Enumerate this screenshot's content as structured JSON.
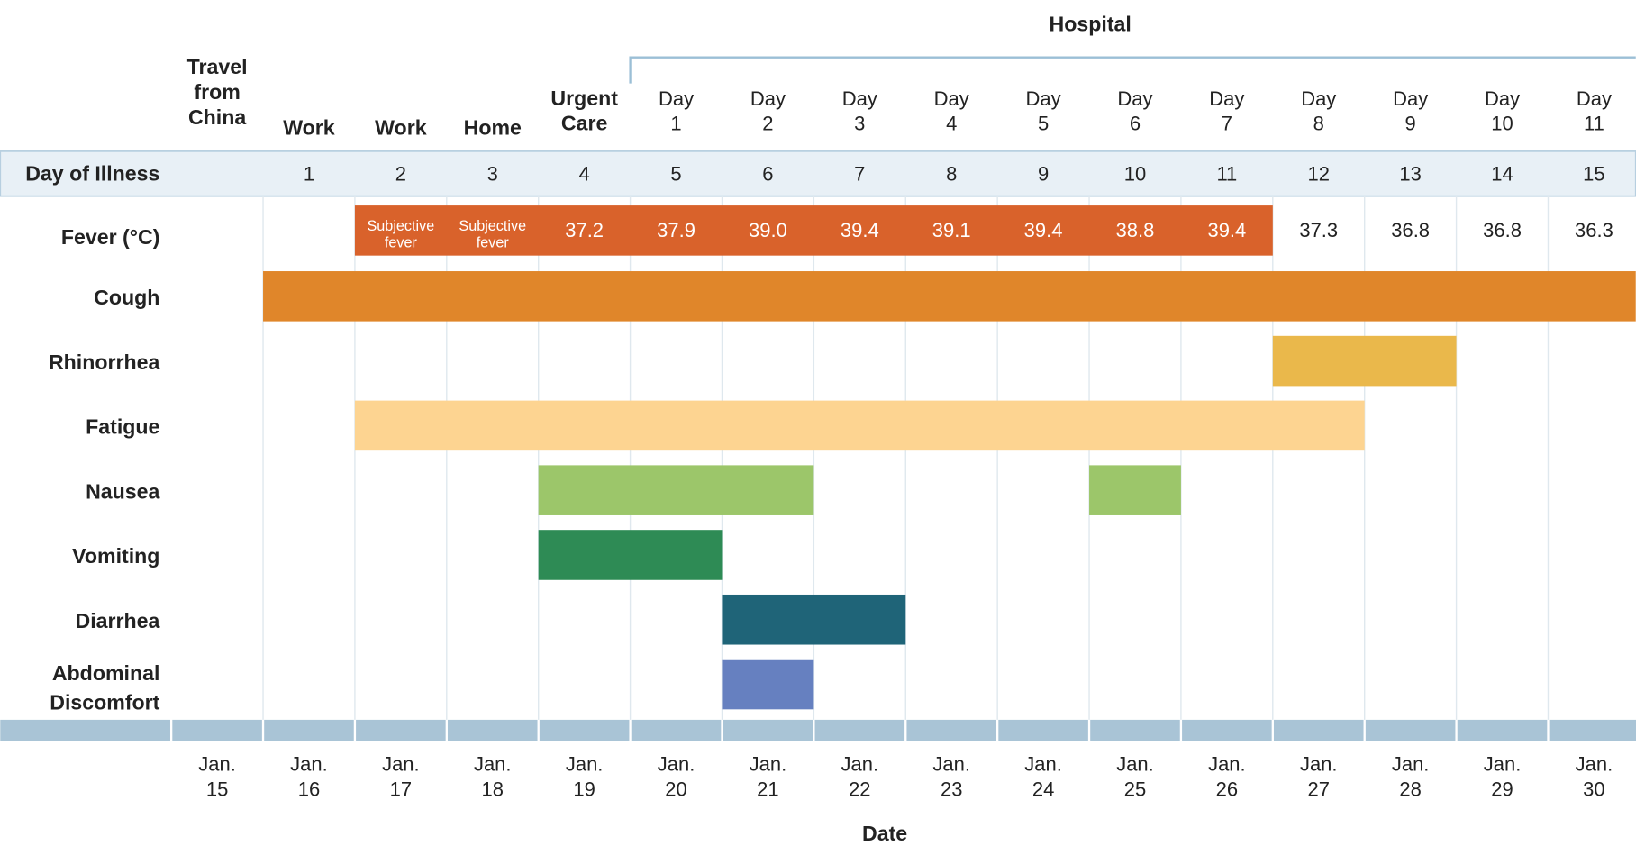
{
  "chart_data": {
    "type": "timeline",
    "group_label": "Hospital",
    "locations": [
      "Travel from China",
      "Work",
      "Work",
      "Home",
      "Urgent Care",
      "Day 1",
      "Day 2",
      "Day 3",
      "Day 4",
      "Day 5",
      "Day 6",
      "Day 7",
      "Day 8",
      "Day 9",
      "Day 10",
      "Day 11"
    ],
    "day_of_illness_label": "Day of Illness",
    "day_of_illness": [
      null,
      "1",
      "2",
      "3",
      "4",
      "5",
      "6",
      "7",
      "8",
      "9",
      "10",
      "11",
      "12",
      "13",
      "14",
      "15"
    ],
    "fever": {
      "name": "Fever (°C)",
      "color": "#d9622b",
      "start": "Jan. 17",
      "end": "Jan. 26",
      "readings": [
        null,
        null,
        "Subjective fever",
        "Subjective fever",
        "37.2",
        "37.9",
        "39.0",
        "39.4",
        "39.1",
        "39.4",
        "38.8",
        "39.4",
        "37.3",
        "36.8",
        "36.8",
        "36.3"
      ]
    },
    "series": [
      {
        "name": "Cough",
        "color": "#e0862a",
        "segments": [
          {
            "start": "Jan. 16",
            "end": "Jan. 30"
          }
        ]
      },
      {
        "name": "Rhinorrhea",
        "color": "#eab84b",
        "segments": [
          {
            "start": "Jan. 27",
            "end": "Jan. 28"
          }
        ]
      },
      {
        "name": "Fatigue",
        "color": "#fdd491",
        "segments": [
          {
            "start": "Jan. 17",
            "end": "Jan. 27"
          }
        ]
      },
      {
        "name": "Nausea",
        "color": "#9cc66a",
        "segments": [
          {
            "start": "Jan. 19",
            "end": "Jan. 21"
          },
          {
            "start": "Jan. 25",
            "end": "Jan. 25"
          }
        ]
      },
      {
        "name": "Vomiting",
        "color": "#2e8b55",
        "segments": [
          {
            "start": "Jan. 19",
            "end": "Jan. 20"
          }
        ]
      },
      {
        "name": "Diarrhea",
        "color": "#1f6478",
        "segments": [
          {
            "start": "Jan. 21",
            "end": "Jan. 22"
          }
        ]
      },
      {
        "name": "Abdominal Discomfort",
        "color": "#6680c0",
        "segments": [
          {
            "start": "Jan. 21",
            "end": "Jan. 21"
          }
        ]
      }
    ],
    "categories": [
      "Jan. 15",
      "Jan. 16",
      "Jan. 17",
      "Jan. 18",
      "Jan. 19",
      "Jan. 20",
      "Jan. 21",
      "Jan. 22",
      "Jan. 23",
      "Jan. 24",
      "Jan. 25",
      "Jan. 26",
      "Jan. 27",
      "Jan. 28",
      "Jan. 29",
      "Jan. 30"
    ],
    "xlabel": "Date"
  }
}
